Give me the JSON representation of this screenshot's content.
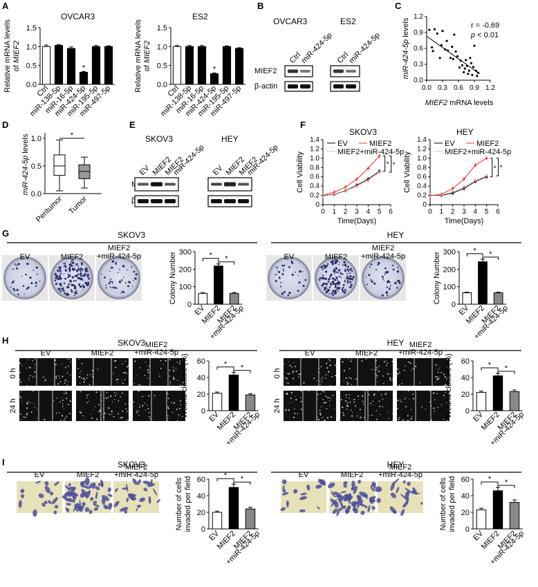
{
  "panels": {
    "A": {
      "label": "A",
      "categories": [
        "Ctrl",
        "miR-138-5p",
        "miR-16-5p",
        "miR-424-5p",
        "miR-195-5p",
        "miR-497-5p"
      ],
      "ylabel_line1": "Relative mRNA levels",
      "ylabel_line2_prefix": "of ",
      "ylabel_line2_gene": "MIEF2",
      "yticks": [
        "0.0",
        "0.5",
        "1.0",
        "1.5"
      ],
      "ylim": [
        0,
        1.5
      ],
      "charts": [
        {
          "title": "OVCAR3",
          "values": [
            1.0,
            1.03,
            0.95,
            0.32,
            1.0,
            1.0
          ],
          "errors": [
            0.04,
            0.02,
            0.04,
            0.02,
            0.03,
            0.02
          ],
          "sig_index": 3
        },
        {
          "title": "ES2",
          "values": [
            1.0,
            1.0,
            1.0,
            0.28,
            1.0,
            0.95
          ],
          "errors": [
            0.03,
            0.03,
            0.03,
            0.02,
            0.02,
            0.02
          ],
          "sig_index": 3
        }
      ],
      "star": "*"
    },
    "B": {
      "label": "B",
      "cell_lines": [
        "OVCAR3",
        "ES2"
      ],
      "lanes": [
        "Ctrl",
        "miR-424-5p"
      ],
      "rows": [
        "MIEF2",
        "β-actin"
      ]
    },
    "C": {
      "label": "C",
      "ylabel_prefix": "miR-424-5p",
      "ylabel_suffix": " levels",
      "xlabel_gene": "MIEF2",
      "xlabel_suffix": " mRNA levels",
      "r_text": "r = -0.69",
      "p_italic": "p",
      "p_rest": " < 0.01",
      "xticks": [
        "0.0",
        "0.3",
        "0.6",
        "0.9",
        "1.2"
      ],
      "yticks": [
        "0.0",
        "0.3",
        "0.6",
        "0.9",
        "1.2"
      ],
      "points": [
        [
          0.05,
          0.95
        ],
        [
          0.1,
          0.62
        ],
        [
          0.15,
          0.96
        ],
        [
          0.2,
          0.88
        ],
        [
          0.28,
          0.66
        ],
        [
          0.3,
          0.93
        ],
        [
          0.35,
          0.58
        ],
        [
          0.38,
          0.74
        ],
        [
          0.4,
          0.56
        ],
        [
          0.45,
          0.42
        ],
        [
          0.48,
          0.63
        ],
        [
          0.52,
          0.86
        ],
        [
          0.55,
          0.54
        ],
        [
          0.58,
          0.45
        ],
        [
          0.62,
          0.24
        ],
        [
          0.64,
          0.37
        ],
        [
          0.67,
          0.28
        ],
        [
          0.7,
          0.15
        ],
        [
          0.72,
          0.22
        ],
        [
          0.74,
          0.38
        ],
        [
          0.76,
          0.27
        ],
        [
          0.78,
          0.12
        ],
        [
          0.8,
          0.18
        ],
        [
          0.82,
          0.42
        ],
        [
          0.84,
          0.32
        ],
        [
          0.86,
          0.1
        ],
        [
          0.88,
          0.25
        ],
        [
          0.9,
          0.65
        ],
        [
          0.93,
          0.18
        ],
        [
          0.95,
          0.08
        ],
        [
          0.97,
          0.14
        ],
        [
          0.25,
          0.42
        ],
        [
          0.5,
          0.4
        ],
        [
          0.12,
          0.55
        ]
      ],
      "fit": [
        [
          0.0,
          0.83
        ],
        [
          1.0,
          0.12
        ]
      ]
    },
    "D": {
      "label": "D",
      "ylabel_prefix": "miR-424-5p",
      "ylabel_suffix": " levels",
      "categories": [
        "Peritumor",
        "Tumor"
      ],
      "yticks": [
        "0.0",
        "0.5",
        "1.0"
      ],
      "boxes": [
        {
          "min": 0.05,
          "q1": 0.33,
          "median": 0.5,
          "q3": 0.7,
          "max": 0.97,
          "color": "#ffffff"
        },
        {
          "min": 0.1,
          "q1": 0.27,
          "median": 0.4,
          "q3": 0.52,
          "max": 0.66,
          "color": "#999999"
        }
      ],
      "star": "*"
    },
    "E": {
      "label": "E",
      "cell_lines": [
        "SKOV3",
        "HEY"
      ],
      "lanes": [
        "EV",
        "MIEF2",
        "MIEF2 +miR-424-5p"
      ],
      "lane_top": [
        "EV",
        "MIEF2",
        "MIEF2"
      ],
      "lane_bottom": [
        "",
        "",
        "miR-424-5p"
      ],
      "rows": [
        "MIEF2",
        "β-actin"
      ]
    },
    "F": {
      "label": "F",
      "ylabel": "Cell Viability",
      "xlabel": "Time(Days)",
      "xticks": [
        "0",
        "1",
        "2",
        "3",
        "4",
        "5",
        "6"
      ],
      "yticks": [
        "0",
        "0.2",
        "0.4",
        "0.6",
        "0.8",
        "1.0",
        "1.2",
        "1.4"
      ],
      "legend": [
        "EV",
        "MIEF2",
        "MIEF2+miR-424-5p"
      ],
      "colors": [
        "#000000",
        "#e8332a",
        "#f08a88"
      ],
      "charts": [
        {
          "title": "SKOV3",
          "days": [
            0,
            1,
            2,
            3,
            4,
            5
          ],
          "series": [
            [
              0.2,
              0.22,
              0.3,
              0.42,
              0.55,
              0.72
            ],
            [
              0.2,
              0.27,
              0.38,
              0.55,
              0.78,
              1.05
            ],
            [
              0.2,
              0.22,
              0.3,
              0.4,
              0.52,
              0.7
            ]
          ]
        },
        {
          "title": "HEY",
          "days": [
            0,
            1,
            2,
            3,
            4,
            5
          ],
          "series": [
            [
              0.2,
              0.2,
              0.25,
              0.35,
              0.5,
              0.6
            ],
            [
              0.2,
              0.22,
              0.35,
              0.55,
              0.85,
              1.0
            ],
            [
              0.2,
              0.2,
              0.28,
              0.38,
              0.52,
              0.62
            ]
          ]
        }
      ],
      "star": "*"
    },
    "G": {
      "label": "G",
      "ylabel": "Colony Number",
      "categories": [
        "EV",
        "MIEF2",
        "MIEF2 +miR-424-5p"
      ],
      "img_labels": [
        "EV",
        "MIEF2",
        "MIEF2",
        "+miR-424-5p"
      ],
      "yticks": [
        "0",
        "100",
        "200",
        "300"
      ],
      "ylim": [
        0,
        300
      ],
      "groups": [
        {
          "title": "SKOV3",
          "values": [
            62,
            218,
            62
          ],
          "errors": [
            4,
            12,
            5
          ]
        },
        {
          "title": "HEY",
          "values": [
            65,
            242,
            65
          ],
          "errors": [
            4,
            15,
            4
          ]
        }
      ],
      "star": "*"
    },
    "H": {
      "label": "H",
      "ylabel": "Wound closure (%)",
      "time_labels": [
        "0 h",
        "24 h"
      ],
      "img_labels_top": [
        "EV",
        "MIEF2",
        "MIEF2"
      ],
      "img_labels_bottom": "+miR-424-5p",
      "yticks": [
        "0",
        "20",
        "40",
        "60"
      ],
      "ylim": [
        0,
        60
      ],
      "groups": [
        {
          "title": "SKOV3",
          "values": [
            21,
            43,
            19
          ],
          "errors": [
            1.5,
            3,
            1.5
          ],
          "categories": [
            "EV",
            "MIEF2",
            "MIEF2 +miR424-5p"
          ]
        },
        {
          "title": "HEY",
          "values": [
            22,
            42,
            23
          ],
          "errors": [
            1.5,
            3,
            2
          ],
          "categories": [
            "EV",
            "MIEF2",
            "MIEF2 +miR424-5p"
          ]
        }
      ],
      "star": "*"
    },
    "I": {
      "label": "I",
      "ylabel_line1": "Number of cells",
      "ylabel_line2": "invaded per field",
      "yticks": [
        "0",
        "20",
        "40",
        "60"
      ],
      "ylim": [
        0,
        60
      ],
      "img_labels_top": [
        "EV",
        "MIEF2",
        "MIEF2"
      ],
      "img_labels_bottom": "+miR-424-5p",
      "groups": [
        {
          "title": "SKOV3",
          "values": [
            20,
            50,
            24
          ],
          "errors": [
            1.5,
            4,
            2
          ],
          "categories": [
            "EV",
            "MIEF2",
            "MIEF2 +miR-424-5p"
          ]
        },
        {
          "title": "HEY",
          "values": [
            23,
            46,
            32
          ],
          "errors": [
            2,
            4,
            3
          ],
          "categories": [
            "EV",
            "MIEF2",
            "MIEF2 +miR424-5p"
          ]
        }
      ],
      "star": "*"
    }
  }
}
